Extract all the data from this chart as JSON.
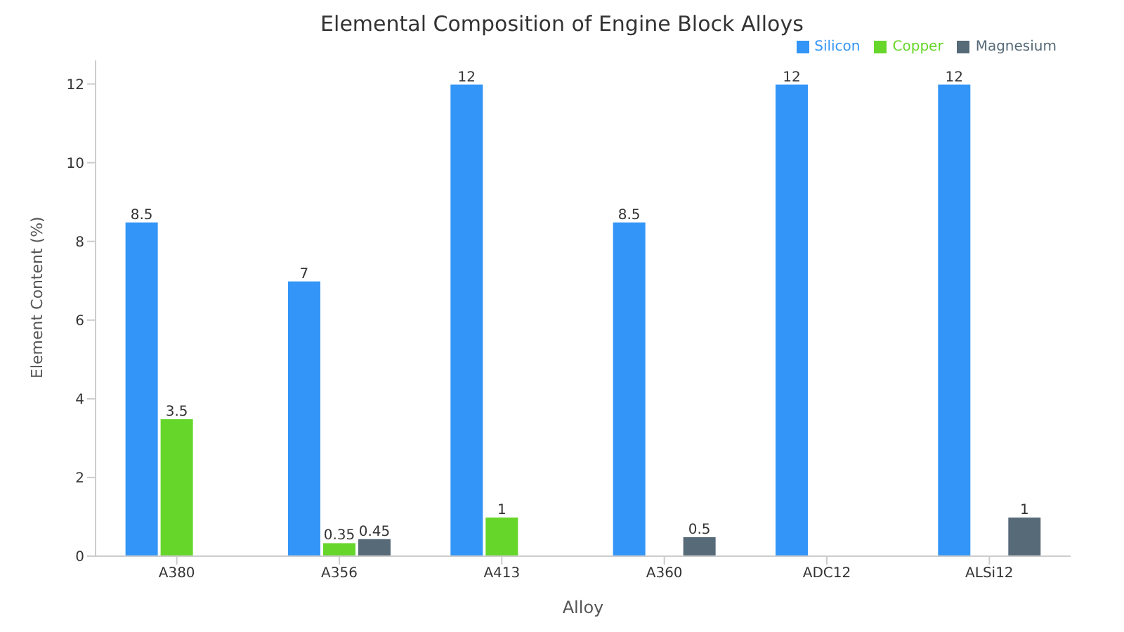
{
  "chart_data": {
    "type": "bar",
    "title": "Elemental Composition of Engine Block Alloys",
    "xlabel": "Alloy",
    "ylabel": "Element Content (%)",
    "categories": [
      "A380",
      "A356",
      "A413",
      "A360",
      "ADC12",
      "ALSi12"
    ],
    "series": [
      {
        "name": "Silicon",
        "color": "#3395f7",
        "values": [
          8.5,
          7,
          12,
          8.5,
          12,
          12
        ]
      },
      {
        "name": "Copper",
        "color": "#66d62a",
        "values": [
          3.5,
          0.35,
          1,
          null,
          null,
          null
        ]
      },
      {
        "name": "Magnesium",
        "color": "#566a78",
        "values": [
          null,
          0.45,
          null,
          0.5,
          null,
          1
        ]
      }
    ],
    "ylim": [
      0,
      12.6
    ],
    "yticks": [
      0,
      2,
      4,
      6,
      8,
      10,
      12
    ],
    "grid": false,
    "legend": "top right",
    "data_labels": true
  }
}
